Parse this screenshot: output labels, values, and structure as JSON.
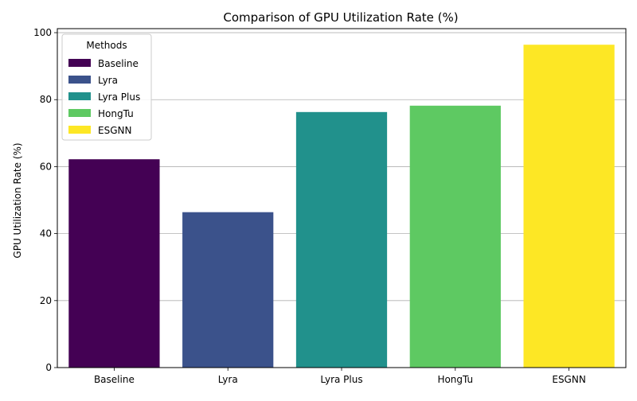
{
  "chart_data": {
    "type": "bar",
    "title": "Comparison of GPU Utilization Rate (%)",
    "xlabel": "",
    "ylabel": "GPU Utilization Rate (%)",
    "categories": [
      "Baseline",
      "Lyra",
      "Lyra Plus",
      "HongTu",
      "ESGNN"
    ],
    "values": [
      62.2,
      46.4,
      76.3,
      78.2,
      96.4
    ],
    "colors": [
      "#440154",
      "#3b528b",
      "#21918c",
      "#5ec962",
      "#fde725"
    ],
    "ylim": [
      0,
      101.2
    ],
    "yticks": [
      0,
      20,
      40,
      60,
      80,
      100
    ],
    "grid": "y",
    "legend": {
      "title": "Methods",
      "placement": "top-left",
      "entries": [
        "Baseline",
        "Lyra",
        "Lyra Plus",
        "HongTu",
        "ESGNN"
      ]
    }
  }
}
